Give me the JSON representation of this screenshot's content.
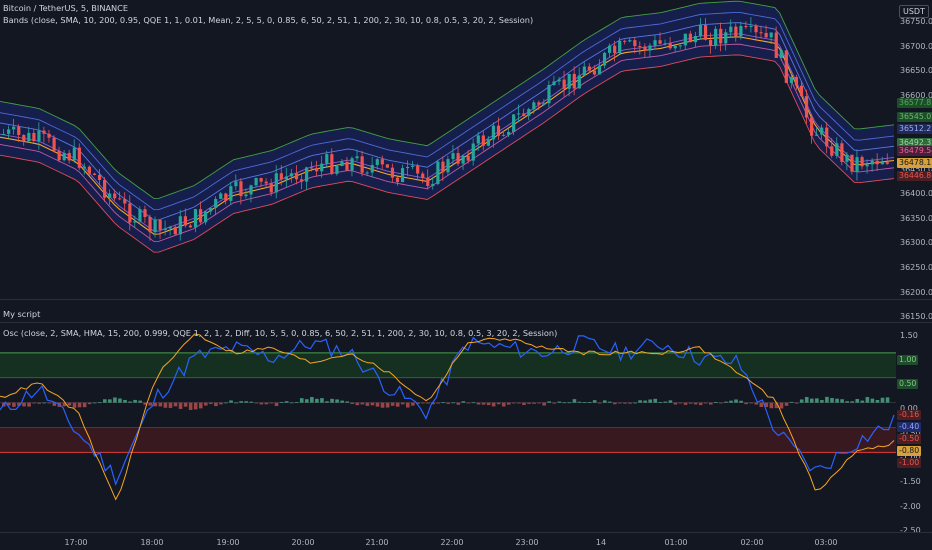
{
  "header": {
    "symbol_title": "Bitcoin / TetherUS, 5, BINANCE",
    "bands_legend": "Bands (close, SMA, 10, 200, 0.95, QQE 1, 1, 0.01, Mean, 2, 5, 5, 0, 0.85, 6, 50, 2, 51, 1, 200, 2, 30, 10, 0.8, 0.5, 3, 20, 2, Session)",
    "currency": "USDT"
  },
  "script_label": "My script",
  "osc_legend": "Osc (close, 2, SMA, HMA, 15, 200, 0.999, QQE 1, 2, 1, 2, Diff, 10, 5, 5, 0, 0.85, 6, 50, 2, 51, 1, 200, 2, 30, 10, 0.8, 0.5, 3, 20, 2, Session)",
  "price_axis": [
    "36750.00",
    "36700.00",
    "36650.00",
    "36600.00",
    "36550.00",
    "36500.00",
    "36450.00",
    "36400.00",
    "36350.00",
    "36300.00",
    "36250.00",
    "36200.00",
    "36150.00"
  ],
  "price_tags": [
    {
      "text": "36577.87",
      "bg": "#1e4d2b",
      "fg": "#4caf50"
    },
    {
      "text": "36545.07",
      "bg": "#1e4d2b",
      "fg": "#66bb6a"
    },
    {
      "text": "36512.27",
      "bg": "#1f2a55",
      "fg": "#9ea8ff"
    },
    {
      "text": "36492.32",
      "bg": "#2e6b3a",
      "fg": "#a5d6a7"
    },
    {
      "text": "36479.54",
      "bg": "#4a1f3a",
      "fg": "#f06292"
    },
    {
      "text": "36478.17",
      "bg": "#d8a03a",
      "fg": "#131722"
    },
    {
      "text": "36446.80",
      "bg": "#4a1f24",
      "fg": "#ef5350"
    }
  ],
  "osc_axis": [
    "1.50",
    "1.00",
    "0.50",
    "0.00",
    "-0.50",
    "-1.00",
    "-1.50",
    "-2.00",
    "-2.50"
  ],
  "osc_tags": [
    {
      "text": "1.00",
      "bg": "#1e4d2b",
      "fg": "#81c784"
    },
    {
      "text": "0.50",
      "bg": "#1e4d2b",
      "fg": "#81c784"
    },
    {
      "text": "-0.16",
      "bg": "#4a1f24",
      "fg": "#ef5350"
    },
    {
      "text": "-0.40",
      "bg": "#1f2a66",
      "fg": "#8fa8ff"
    },
    {
      "text": "-0.50",
      "bg": "#4a1f24",
      "fg": "#ef5350"
    },
    {
      "text": "-0.80",
      "bg": "#d8a03a",
      "fg": "#131722"
    },
    {
      "text": "-1.00",
      "bg": "#4a1f24",
      "fg": "#ef5350"
    }
  ],
  "time_axis": [
    "17:00",
    "18:00",
    "19:00",
    "20:00",
    "21:00",
    "22:00",
    "23:00",
    "14",
    "01:00",
    "02:00",
    "03:00"
  ],
  "colors": {
    "up": "#26a69a",
    "down": "#ef5350",
    "blue": "#2962ff",
    "orange": "#f5a623",
    "band_fill": "#1a2470"
  },
  "chart_data": [
    {
      "type": "line",
      "title": "Bitcoin / TetherUS, 5, BINANCE",
      "x": [
        "16:00",
        "16:30",
        "17:00",
        "17:30",
        "18:00",
        "18:30",
        "19:00",
        "19:30",
        "20:00",
        "20:30",
        "21:00",
        "21:30",
        "22:00",
        "22:30",
        "23:00",
        "23:30",
        "00:00",
        "00:30",
        "01:00",
        "01:30",
        "02:00",
        "02:30",
        "03:00",
        "03:25"
      ],
      "series": [
        {
          "values": [
            36510,
            36495,
            36455,
            36360,
            36300,
            36330,
            36385,
            36405,
            36440,
            36455,
            36430,
            36415,
            36470,
            36525,
            36580,
            36640,
            36690,
            36700,
            36720,
            36725,
            36710,
            36530,
            36450,
            36460
          ]
        }
      ],
      "ylim": [
        36140,
        36780
      ]
    },
    {
      "type": "line",
      "title": "Osc",
      "x": [
        "16:00",
        "16:30",
        "17:00",
        "17:30",
        "18:00",
        "18:30",
        "19:00",
        "19:30",
        "20:00",
        "20:30",
        "21:00",
        "21:30",
        "22:00",
        "22:30",
        "23:00",
        "23:30",
        "00:00",
        "00:30",
        "01:00",
        "01:30",
        "02:00",
        "02:30",
        "03:00",
        "03:25"
      ],
      "series": [
        {
          "values": [
            -0.2,
            0.3,
            -0.6,
            -1.5,
            0.1,
            0.9,
            1.1,
            0.9,
            1.2,
            1.0,
            0.3,
            -0.2,
            1.2,
            1.1,
            1.0,
            1.2,
            1.0,
            1.2,
            0.9,
            0.8,
            -0.6,
            -1.4,
            -0.8,
            -0.4
          ]
        },
        {
          "values": [
            0.1,
            0.4,
            -0.2,
            -2.0,
            0.5,
            1.4,
            1.0,
            1.1,
            0.8,
            1.0,
            0.6,
            0.0,
            1.2,
            1.3,
            1.1,
            1.0,
            1.0,
            1.0,
            1.1,
            0.6,
            0.0,
            -1.8,
            -1.0,
            -0.8
          ]
        }
      ],
      "ylim": [
        -2.6,
        1.6
      ]
    }
  ]
}
